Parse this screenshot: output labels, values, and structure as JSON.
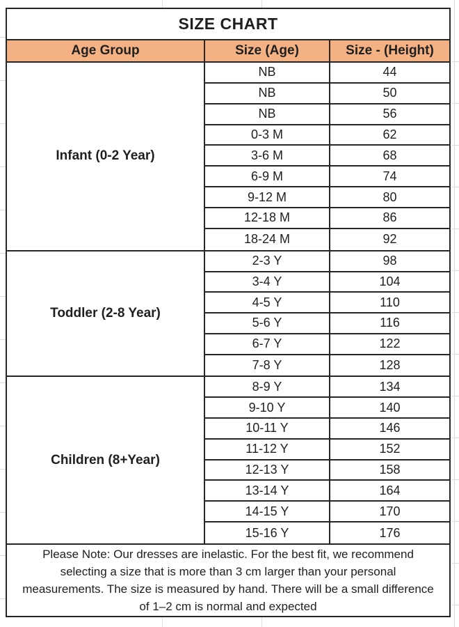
{
  "title": "SIZE CHART",
  "table": {
    "columns": [
      "Age Group",
      "Size (Age)",
      "Size - (Height)"
    ],
    "groups": [
      {
        "label": "Infant (0-2 Year)",
        "rows": [
          [
            "NB",
            "44"
          ],
          [
            "NB",
            "50"
          ],
          [
            "NB",
            "56"
          ],
          [
            "0-3 M",
            "62"
          ],
          [
            "3-6 M",
            "68"
          ],
          [
            "6-9 M",
            "74"
          ],
          [
            "9-12 M",
            "80"
          ],
          [
            "12-18 M",
            "86"
          ],
          [
            "18-24 M",
            "92"
          ]
        ]
      },
      {
        "label": "Toddler (2-8 Year)",
        "rows": [
          [
            "2-3 Y",
            "98"
          ],
          [
            "3-4 Y",
            "104"
          ],
          [
            "4-5 Y",
            "110"
          ],
          [
            "5-6 Y",
            "116"
          ],
          [
            "6-7 Y",
            "122"
          ],
          [
            "7-8 Y",
            "128"
          ]
        ]
      },
      {
        "label": "Children (8+Year)",
        "rows": [
          [
            "8-9 Y",
            "134"
          ],
          [
            "9-10 Y",
            "140"
          ],
          [
            "10-11 Y",
            "146"
          ],
          [
            "11-12 Y",
            "152"
          ],
          [
            "12-13 Y",
            "158"
          ],
          [
            "13-14 Y",
            "164"
          ],
          [
            "14-15 Y",
            "170"
          ],
          [
            "15-16 Y",
            "176"
          ]
        ]
      }
    ]
  },
  "note": "Please Note: Our dresses are inelastic. For the best fit, we recommend selecting a size that is more than 3 cm larger than your personal measurements. The size is measured by hand. There will be a small difference of 1–2 cm is normal and expected",
  "colors": {
    "header_bg": "#F4B183",
    "border": "#262626",
    "text": "#1f1f1f",
    "gridline": "#dcdcdc"
  }
}
